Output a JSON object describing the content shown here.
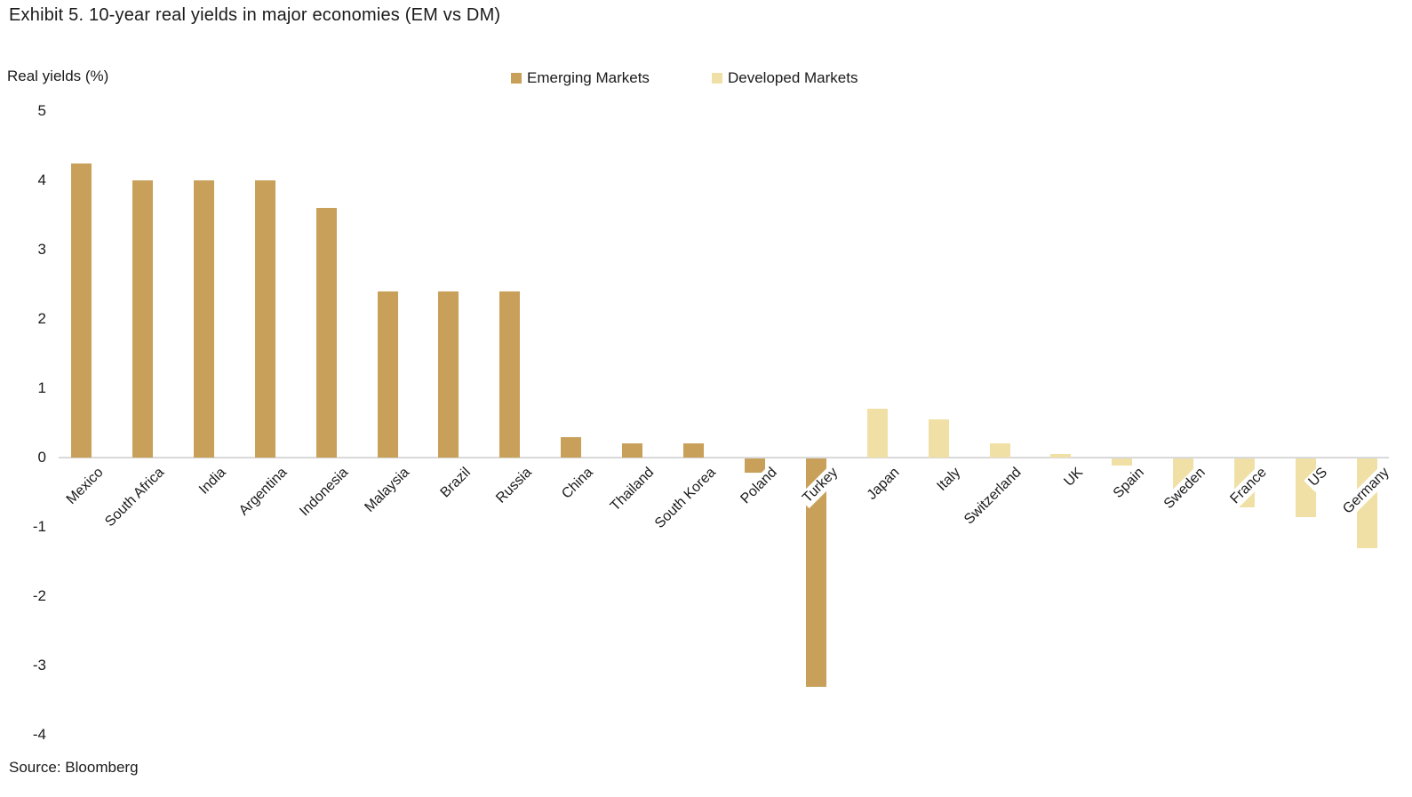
{
  "title": "Exhibit 5. 10-year real yields in major economies (EM vs DM)",
  "axis_label": "Real yields (%)",
  "source": "Source: Bloomberg",
  "legend": [
    {
      "label": "Emerging Markets",
      "color": "#C9A05A"
    },
    {
      "label": "Developed Markets",
      "color": "#F0E0A6"
    }
  ],
  "colors": {
    "emerging": "#C9A05A",
    "developed": "#F0E0A6",
    "axis_line": "#D9D9D9",
    "text": "#1A1A1A"
  },
  "chart_data": {
    "type": "bar",
    "title": "Exhibit 5. 10-year real yields in major economies (EM vs DM)",
    "xlabel": "",
    "ylabel": "Real yields (%)",
    "ylim": [
      -4,
      5
    ],
    "yticks": [
      5,
      4,
      3,
      2,
      1,
      0,
      -1,
      -2,
      -3,
      -4
    ],
    "grid": false,
    "legend_position": "top-center",
    "categories": [
      "Mexico",
      "South Africa",
      "India",
      "Argentina",
      "Indonesia",
      "Malaysia",
      "Brazil",
      "Russia",
      "China",
      "Thailand",
      "South Korea",
      "Poland",
      "Turkey",
      "Japan",
      "Italy",
      "Switzerland",
      "UK",
      "Spain",
      "Sweden",
      "France",
      "US",
      "Germany"
    ],
    "series": [
      {
        "name": "Emerging Markets",
        "color": "#C9A05A",
        "values": [
          4.25,
          4.0,
          4.0,
          4.0,
          3.6,
          2.4,
          2.4,
          2.4,
          0.3,
          0.2,
          0.2,
          -0.2,
          -3.3,
          null,
          null,
          null,
          null,
          null,
          null,
          null,
          null,
          null
        ]
      },
      {
        "name": "Developed Markets",
        "color": "#F0E0A6",
        "values": [
          null,
          null,
          null,
          null,
          null,
          null,
          null,
          null,
          null,
          null,
          null,
          null,
          null,
          0.7,
          0.55,
          0.2,
          0.05,
          -0.1,
          -0.45,
          -0.7,
          -0.85,
          -1.3
        ]
      }
    ]
  }
}
